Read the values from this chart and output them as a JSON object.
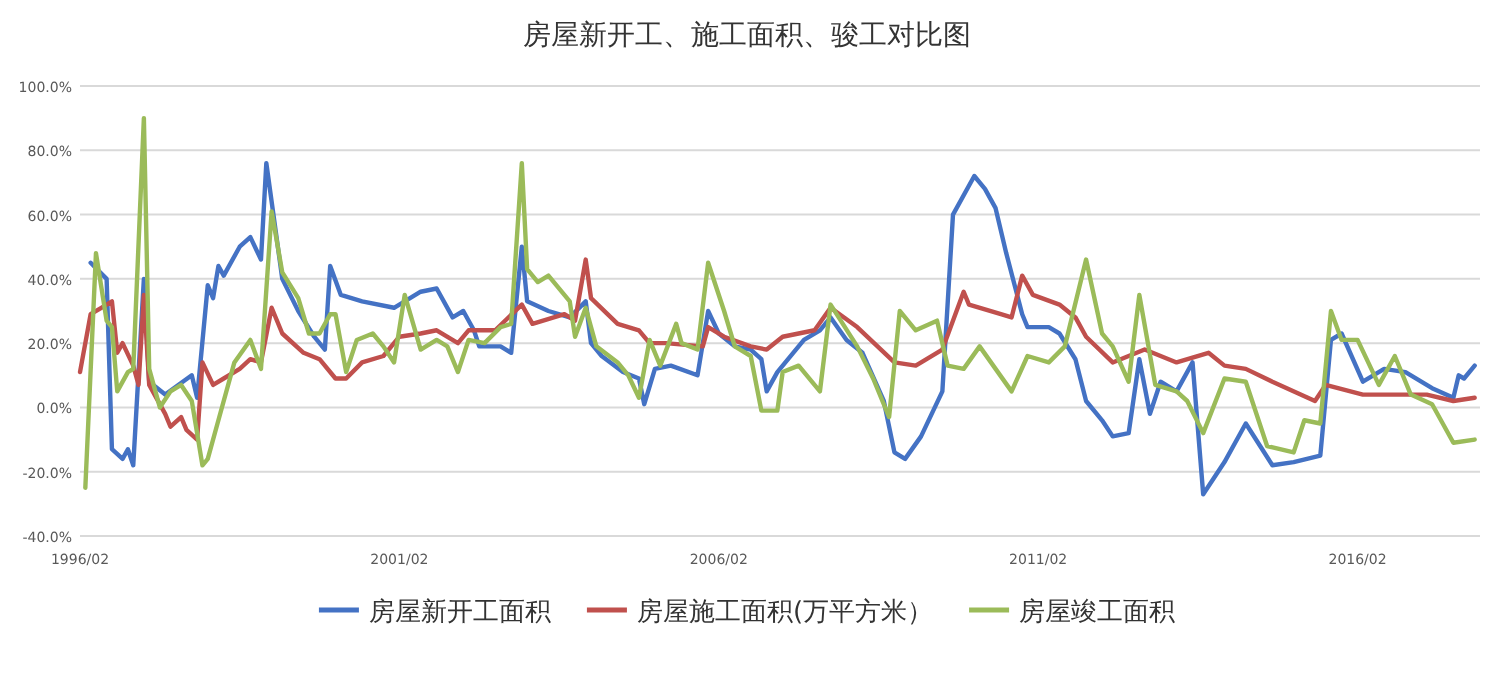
{
  "chart_data": {
    "type": "line",
    "title": "房屋新开工、施工面积、骏工对比图",
    "xlim": [
      "1996-02",
      "2018-01"
    ],
    "xticks": [
      {
        "value": "1996-02",
        "label": "1996/02"
      },
      {
        "value": "2001-02",
        "label": "2001/02"
      },
      {
        "value": "2006-02",
        "label": "2006/02"
      },
      {
        "value": "2011-02",
        "label": "2011/02"
      },
      {
        "value": "2016-02",
        "label": "2016/02"
      }
    ],
    "ylim": [
      -40,
      100
    ],
    "yticks": [
      {
        "value": -40,
        "label": "-40.0%"
      },
      {
        "value": -20,
        "label": "-20.0%"
      },
      {
        "value": 0,
        "label": "0.0%"
      },
      {
        "value": 20,
        "label": "20.0%"
      },
      {
        "value": 40,
        "label": "40.0%"
      },
      {
        "value": 60,
        "label": "60.0%"
      },
      {
        "value": 80,
        "label": "80.0%"
      },
      {
        "value": 100,
        "label": "100.0%"
      }
    ],
    "grid": "y",
    "legend": "bottom",
    "marker": "none",
    "line_style": "solid",
    "series": [
      {
        "name": "房屋新开工面积",
        "color": "#4472c4",
        "x": [
          "1996-04",
          "1996-07",
          "1996-08",
          "1996-10",
          "1996-11",
          "1996-12",
          "1997-02",
          "1997-03",
          "1997-06",
          "1997-11",
          "1997-12",
          "1998-02",
          "1998-03",
          "1998-04",
          "1998-05",
          "1998-08",
          "1998-10",
          "1998-12",
          "1999-01",
          "1999-04",
          "1999-07",
          "1999-10",
          "1999-12",
          "2000-01",
          "2000-03",
          "2000-07",
          "2001-01",
          "2001-06",
          "2001-09",
          "2001-12",
          "2002-02",
          "2002-04",
          "2002-05",
          "2002-09",
          "2002-11",
          "2003-01",
          "2003-02",
          "2003-06",
          "2003-10",
          "2004-01",
          "2004-02",
          "2004-04",
          "2004-08",
          "2004-11",
          "2004-12",
          "2005-02",
          "2005-05",
          "2005-10",
          "2005-12",
          "2006-02",
          "2006-05",
          "2006-08",
          "2006-10",
          "2006-11",
          "2007-01",
          "2007-06",
          "2007-09",
          "2007-11",
          "2008-02",
          "2008-05",
          "2008-09",
          "2008-11",
          "2009-01",
          "2009-04",
          "2009-08",
          "2009-10",
          "2010-02",
          "2010-04",
          "2010-06",
          "2010-08",
          "2010-11",
          "2010-12",
          "2011-04",
          "2011-06",
          "2011-09",
          "2011-11",
          "2012-02",
          "2012-04",
          "2012-07",
          "2012-09",
          "2012-11",
          "2013-01",
          "2013-04",
          "2013-07",
          "2013-09",
          "2014-01",
          "2014-05",
          "2014-10",
          "2015-02",
          "2015-07",
          "2015-09",
          "2015-11",
          "2016-03",
          "2016-07",
          "2016-11",
          "2017-04",
          "2017-08",
          "2017-09",
          "2017-10",
          "2017-12"
        ],
        "values": [
          45,
          40,
          -13,
          -16,
          -13,
          -18,
          40,
          8,
          4,
          10,
          3,
          38,
          34,
          44,
          41,
          50,
          53,
          46,
          76,
          40,
          30,
          22,
          18,
          44,
          35,
          33,
          31,
          36,
          37,
          28,
          30,
          24,
          19,
          19,
          17,
          50,
          33,
          30,
          28,
          33,
          20,
          16,
          11,
          9,
          1,
          12,
          13,
          10,
          30,
          23,
          19,
          18,
          15,
          5,
          11,
          21,
          24,
          28,
          21,
          17,
          2,
          -14,
          -16,
          -9,
          5,
          60,
          72,
          68,
          62,
          48,
          29,
          25,
          25,
          23,
          15,
          2,
          -4,
          -9,
          -8,
          15,
          -2,
          8,
          5,
          14,
          -27,
          -17,
          -5,
          -18,
          -17,
          -15,
          21,
          23,
          8,
          12,
          11,
          6,
          3,
          10,
          9,
          13
        ]
      },
      {
        "name": "房屋施工面积(万平方米）",
        "color": "#c0504d",
        "x": [
          "1996-02",
          "1996-04",
          "1996-06",
          "1996-08",
          "1996-09",
          "1996-10",
          "1996-12",
          "1997-01",
          "1997-02",
          "1997-03",
          "1997-06",
          "1997-07",
          "1997-09",
          "1997-10",
          "1997-12",
          "1998-01",
          "1998-03",
          "1998-05",
          "1998-08",
          "1998-10",
          "1998-12",
          "1999-02",
          "1999-04",
          "1999-08",
          "1999-11",
          "2000-02",
          "2000-04",
          "2000-07",
          "2000-11",
          "2001-02",
          "2001-06",
          "2001-09",
          "2002-01",
          "2002-03",
          "2002-08",
          "2003-01",
          "2003-03",
          "2003-09",
          "2003-11",
          "2004-01",
          "2004-02",
          "2004-07",
          "2004-11",
          "2005-01",
          "2005-04",
          "2005-11",
          "2005-12",
          "2006-03",
          "2006-08",
          "2006-11",
          "2007-02",
          "2007-08",
          "2007-11",
          "2008-04",
          "2008-11",
          "2009-03",
          "2009-08",
          "2009-12",
          "2010-01",
          "2010-07",
          "2010-09",
          "2010-11",
          "2011-01",
          "2011-06",
          "2011-09",
          "2011-11",
          "2012-04",
          "2012-10",
          "2013-04",
          "2013-10",
          "2014-01",
          "2014-05",
          "2014-10",
          "2015-06",
          "2015-08",
          "2016-03",
          "2017-03",
          "2017-08",
          "2017-12"
        ],
        "values": [
          11,
          29,
          31,
          33,
          17,
          20,
          13,
          7,
          35,
          7,
          -2,
          -6,
          -3,
          -7,
          -10,
          14,
          7,
          9,
          12,
          15,
          14,
          31,
          23,
          17,
          15,
          9,
          9,
          14,
          16,
          22,
          23,
          24,
          20,
          24,
          24,
          32,
          26,
          29,
          27,
          46,
          34,
          26,
          24,
          20,
          20,
          19,
          25,
          22,
          19,
          18,
          22,
          24,
          31,
          25,
          14,
          13,
          18,
          36,
          32,
          29,
          28,
          41,
          35,
          32,
          28,
          22,
          14,
          18,
          14,
          17,
          13,
          12,
          8,
          2,
          7,
          4,
          4,
          2,
          3
        ]
      },
      {
        "name": "房屋竣工面积",
        "color": "#9bbb59",
        "x": [
          "1996-03",
          "1996-05",
          "1996-07",
          "1996-08",
          "1996-09",
          "1996-11",
          "1996-12",
          "1997-02",
          "1997-03",
          "1997-05",
          "1997-07",
          "1997-09",
          "1997-11",
          "1998-01",
          "1998-02",
          "1998-04",
          "1998-07",
          "1998-10",
          "1998-12",
          "1999-02",
          "1999-04",
          "1999-07",
          "1999-09",
          "1999-11",
          "2000-01",
          "2000-02",
          "2000-04",
          "2000-06",
          "2000-09",
          "2000-11",
          "2001-01",
          "2001-03",
          "2001-06",
          "2001-09",
          "2001-11",
          "2002-01",
          "2002-03",
          "2002-06",
          "2002-09",
          "2002-11",
          "2003-01",
          "2003-02",
          "2003-04",
          "2003-06",
          "2003-10",
          "2003-11",
          "2004-01",
          "2004-03",
          "2004-07",
          "2004-09",
          "2004-11",
          "2005-01",
          "2005-03",
          "2005-06",
          "2005-07",
          "2005-10",
          "2005-12",
          "2006-03",
          "2006-05",
          "2006-08",
          "2006-10",
          "2007-01",
          "2007-02",
          "2007-05",
          "2007-09",
          "2007-11",
          "2008-04",
          "2008-07",
          "2008-10",
          "2008-12",
          "2009-03",
          "2009-07",
          "2009-09",
          "2009-12",
          "2010-03",
          "2010-06",
          "2010-09",
          "2010-12",
          "2011-04",
          "2011-07",
          "2011-11",
          "2012-02",
          "2012-04",
          "2012-07",
          "2012-09",
          "2012-12",
          "2013-04",
          "2013-06",
          "2013-09",
          "2014-01",
          "2014-05",
          "2014-09",
          "2015-02",
          "2015-04",
          "2015-07",
          "2015-09",
          "2015-11",
          "2016-02",
          "2016-06",
          "2016-09",
          "2016-12",
          "2017-04",
          "2017-08",
          "2017-12"
        ],
        "values": [
          -25,
          48,
          27,
          25,
          5,
          11,
          12,
          90,
          12,
          0,
          5,
          7,
          2,
          -18,
          -16,
          -4,
          14,
          21,
          12,
          61,
          42,
          34,
          23,
          23,
          29,
          29,
          11,
          21,
          23,
          19,
          14,
          35,
          18,
          21,
          19,
          11,
          21,
          20,
          25,
          26,
          76,
          43,
          39,
          41,
          33,
          22,
          31,
          19,
          14,
          10,
          3,
          21,
          13,
          26,
          20,
          18,
          45,
          30,
          19,
          16,
          -1,
          -1,
          11,
          13,
          5,
          32,
          19,
          9,
          -3,
          30,
          24,
          27,
          13,
          12,
          19,
          12,
          5,
          16,
          14,
          19,
          46,
          23,
          19,
          8,
          35,
          7,
          5,
          2,
          -8,
          9,
          8,
          -12,
          -14,
          -4,
          -5,
          30,
          21,
          21,
          7,
          16,
          4,
          1,
          -11,
          -10
        ]
      }
    ]
  }
}
